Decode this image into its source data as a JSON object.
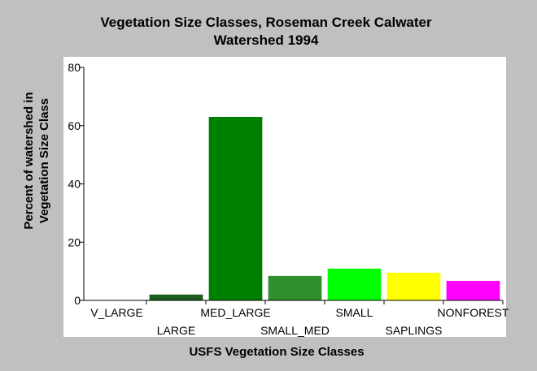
{
  "chart_data": {
    "type": "bar",
    "title": [
      "Vegetation Size Classes, Roseman Creek Calwater",
      "Watershed 1994"
    ],
    "x_label": "USFS Vegetation Size Classes",
    "y_label": [
      "Percent of watershed in",
      "Vegetation Size Class"
    ],
    "categories": [
      "V_LARGE",
      "LARGE",
      "MED_LARGE",
      "SMALL_MED",
      "SMALL",
      "SAPLINGS",
      "NONFOREST"
    ],
    "values": [
      0,
      2,
      63,
      8.4,
      10.9,
      9.5,
      6.7
    ],
    "colors": [
      "#006400",
      "#1e5e1e",
      "#008000",
      "#2f8f2f",
      "#00ff00",
      "#ffff00",
      "#ff00ff"
    ],
    "ylim": [
      0,
      80
    ],
    "yticks": [
      0,
      20,
      40,
      60,
      80
    ]
  }
}
